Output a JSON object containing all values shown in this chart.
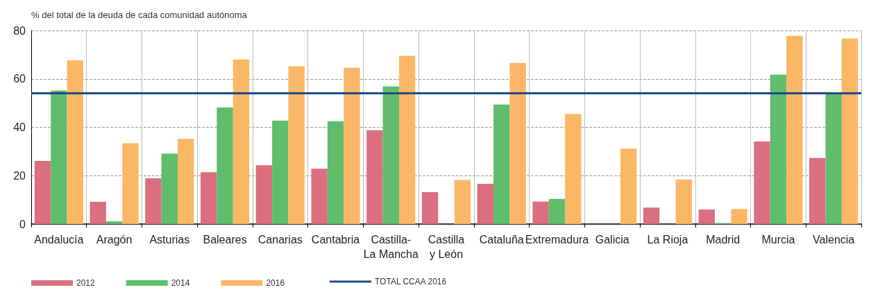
{
  "chart_data": {
    "type": "bar",
    "ylabel": "% del total de la deuda de cada comunidad autónoma",
    "categories": [
      "Andalucía",
      "Aragón",
      "Asturias",
      "Baleares",
      "Canarias",
      "Cantabria",
      "Castilla-\nLa Mancha",
      "Castilla\ny León",
      "Cataluña",
      "Extremadura",
      "Galicia",
      "La Rioja",
      "Madrid",
      "Murcia",
      "Valencia"
    ],
    "series": [
      {
        "name": "2012",
        "color": "#db6f7f",
        "values": [
          26.1,
          9.2,
          18.9,
          21.4,
          24.3,
          22.9,
          38.8,
          13.2,
          16.6,
          9.3,
          null,
          6.8,
          6.0,
          34.1,
          27.3
        ]
      },
      {
        "name": "2014",
        "color": "#5fbd6b",
        "values": [
          55.2,
          1.1,
          29.1,
          48.2,
          42.7,
          42.5,
          56.9,
          null,
          49.4,
          10.4,
          null,
          null,
          0.4,
          61.7,
          53.6
        ]
      },
      {
        "name": "2016",
        "color": "#fbb766",
        "values": [
          67.7,
          33.4,
          35.2,
          68.0,
          65.2,
          64.6,
          69.5,
          18.2,
          66.6,
          45.5,
          31.2,
          18.4,
          6.2,
          77.8,
          76.7
        ]
      }
    ],
    "ref_lines": [
      {
        "axis": "y",
        "value": 54,
        "label": "TOTAL CCAA 2016",
        "color": "#1f4a8c",
        "line_style": "solid"
      }
    ],
    "ylim": [
      0,
      80
    ],
    "yticks": [
      0,
      20,
      40,
      60,
      80
    ],
    "grid": true,
    "legend": "bottom left"
  }
}
